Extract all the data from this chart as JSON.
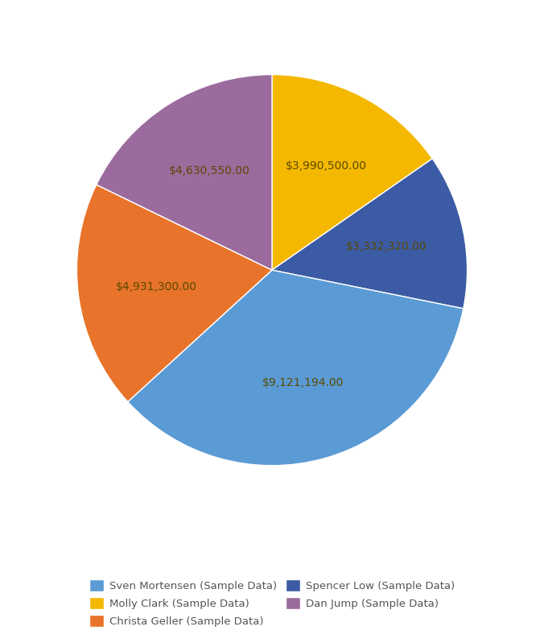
{
  "legend_entries": [
    {
      "label": "Sven Mortensen (Sample Data)",
      "color": "#5B9BD5"
    },
    {
      "label": "Molly Clark (Sample Data)",
      "color": "#F5B800"
    },
    {
      "label": "Christa Geller (Sample Data)",
      "color": "#E8732A"
    },
    {
      "label": "Spencer Low (Sample Data)",
      "color": "#3B5BA5"
    },
    {
      "label": "Dan Jump (Sample Data)",
      "color": "#9B6B9E"
    }
  ],
  "slices": [
    {
      "label": "Molly Clark (Sample Data)",
      "value": 3990500.0,
      "color": "#F5B800",
      "text": "$3,990,500.00"
    },
    {
      "label": "Spencer Low (Sample Data)",
      "value": 3332320.0,
      "color": "#3B5BA5",
      "text": "$3,332,320.00"
    },
    {
      "label": "Sven Mortensen (Sample Data)",
      "value": 9121194.0,
      "color": "#5B9BD5",
      "text": "$9,121,194.00"
    },
    {
      "label": "Christa Geller (Sample Data)",
      "value": 4931300.0,
      "color": "#E8732A",
      "text": "$4,931,300.00"
    },
    {
      "label": "Dan Jump (Sample Data)",
      "value": 4630550.0,
      "color": "#9B6B9E",
      "text": "$4,630,550.00"
    }
  ],
  "text_color": "#5A4A00",
  "label_fontsize": 10,
  "background_color": "#FFFFFF",
  "startangle": 90,
  "legend_fontsize": 9.5,
  "legend_label_color": "#555555"
}
